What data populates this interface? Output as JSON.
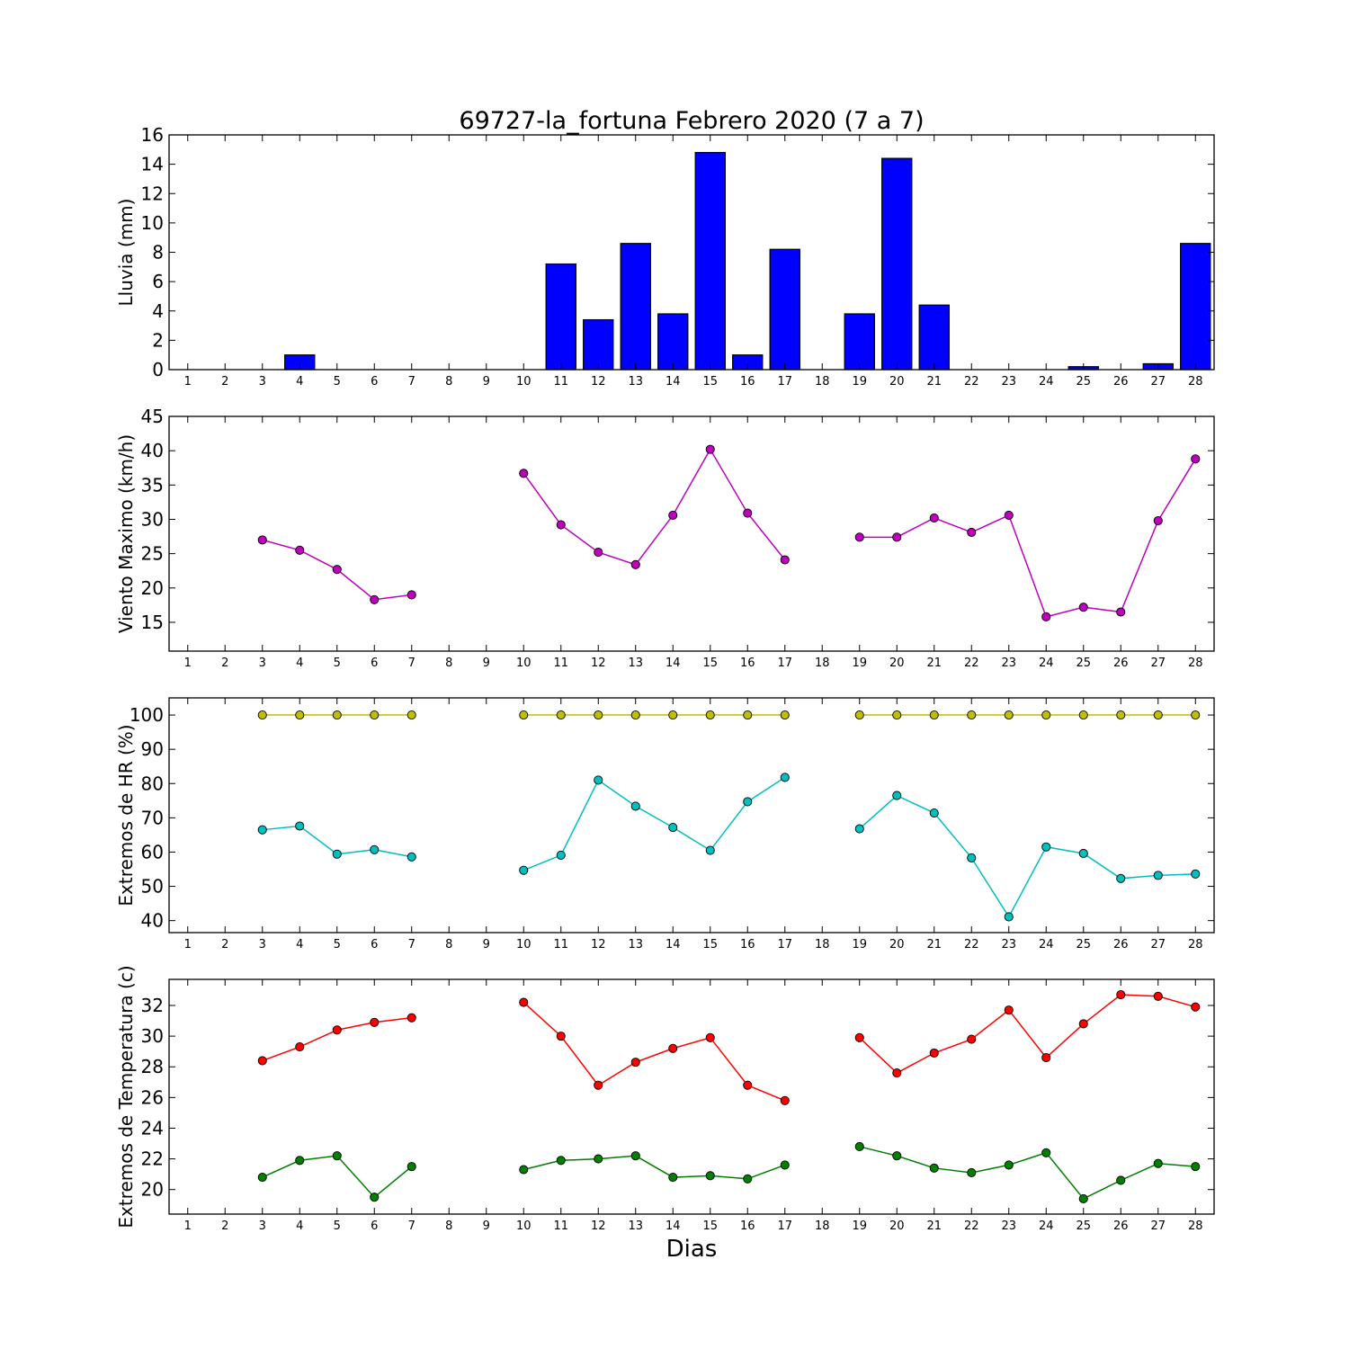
{
  "figure": {
    "title": "69727-la_fortuna Febrero 2020  (7 a 7)",
    "xlabel": "Dias"
  },
  "chart_data": [
    {
      "id": "rain",
      "type": "bar",
      "ylabel": "Lluvia (mm)",
      "ylim": [
        0,
        16
      ],
      "yticks": [
        0,
        2,
        4,
        6,
        8,
        10,
        12,
        14,
        16
      ],
      "xlim": [
        0.5,
        28.5
      ],
      "xticks": [
        1,
        2,
        3,
        4,
        5,
        6,
        7,
        8,
        9,
        10,
        11,
        12,
        13,
        14,
        15,
        16,
        17,
        18,
        19,
        20,
        21,
        22,
        23,
        24,
        25,
        26,
        27,
        28
      ],
      "grid": false,
      "series": [
        {
          "color": "#0000ff",
          "x": [
            1,
            2,
            3,
            4,
            5,
            6,
            7,
            8,
            9,
            10,
            11,
            12,
            13,
            14,
            15,
            16,
            17,
            18,
            19,
            20,
            21,
            22,
            23,
            24,
            25,
            26,
            27,
            28
          ],
          "values": [
            0,
            0,
            0,
            1.0,
            0,
            0,
            0,
            0,
            0,
            0,
            7.2,
            3.4,
            8.6,
            3.8,
            14.8,
            1.0,
            8.2,
            0,
            3.8,
            14.4,
            4.4,
            0,
            0,
            0,
            0.2,
            0,
            0.4,
            8.6
          ]
        }
      ]
    },
    {
      "id": "wind",
      "type": "line",
      "ylabel": "Viento Maximo (km/h)",
      "ylim": [
        10.8,
        45
      ],
      "yticks": [
        15,
        20,
        25,
        30,
        35,
        40,
        45
      ],
      "xlim": [
        0.5,
        28.5
      ],
      "xticks": [
        1,
        2,
        3,
        4,
        5,
        6,
        7,
        8,
        9,
        10,
        11,
        12,
        13,
        14,
        15,
        16,
        17,
        18,
        19,
        20,
        21,
        22,
        23,
        24,
        25,
        26,
        27,
        28
      ],
      "grid": false,
      "series": [
        {
          "color": "#bf00bf",
          "x": [
            3,
            4,
            5,
            6,
            7,
            10,
            11,
            12,
            13,
            14,
            15,
            16,
            17,
            19,
            20,
            21,
            22,
            23,
            24,
            25,
            26,
            27,
            28
          ],
          "y": [
            27.0,
            25.5,
            22.7,
            18.3,
            19.0,
            36.7,
            29.2,
            25.2,
            23.4,
            30.6,
            40.2,
            30.9,
            24.1,
            27.4,
            27.4,
            30.2,
            28.1,
            30.6,
            15.8,
            17.2,
            16.5,
            29.8,
            38.8
          ]
        }
      ]
    },
    {
      "id": "hr",
      "type": "line",
      "ylabel": "Extremos de HR (%)",
      "ylim": [
        36.5,
        105
      ],
      "yticks": [
        40,
        50,
        60,
        70,
        80,
        90,
        100
      ],
      "xlim": [
        0.5,
        28.5
      ],
      "xticks": [
        1,
        2,
        3,
        4,
        5,
        6,
        7,
        8,
        9,
        10,
        11,
        12,
        13,
        14,
        15,
        16,
        17,
        18,
        19,
        20,
        21,
        22,
        23,
        24,
        25,
        26,
        27,
        28
      ],
      "grid": false,
      "series": [
        {
          "color": "#bfbf00",
          "x": [
            3,
            4,
            5,
            6,
            7,
            10,
            11,
            12,
            13,
            14,
            15,
            16,
            17,
            19,
            20,
            21,
            22,
            23,
            24,
            25,
            26,
            27,
            28
          ],
          "y": [
            100,
            100,
            100,
            100,
            100,
            100,
            100,
            100,
            100,
            100,
            100,
            100,
            100,
            100,
            100,
            100,
            100,
            100,
            100,
            100,
            100,
            100,
            100
          ]
        },
        {
          "color": "#00bfbf",
          "x": [
            3,
            4,
            5,
            6,
            7,
            10,
            11,
            12,
            13,
            14,
            15,
            16,
            17,
            19,
            20,
            21,
            22,
            23,
            24,
            25,
            26,
            27,
            28
          ],
          "y": [
            66.5,
            67.6,
            59.4,
            60.7,
            58.6,
            54.7,
            59.1,
            81.0,
            73.4,
            67.2,
            60.5,
            74.7,
            81.8,
            66.8,
            76.5,
            71.4,
            58.3,
            41.1,
            61.5,
            59.6,
            52.3,
            53.2,
            53.6
          ]
        }
      ]
    },
    {
      "id": "temp",
      "type": "line",
      "ylabel": "Extremos de Temperatura (c)",
      "ylim": [
        18.4,
        33.7
      ],
      "yticks": [
        20,
        22,
        24,
        26,
        28,
        30,
        32
      ],
      "xlim": [
        0.5,
        28.5
      ],
      "xticks": [
        1,
        2,
        3,
        4,
        5,
        6,
        7,
        8,
        9,
        10,
        11,
        12,
        13,
        14,
        15,
        16,
        17,
        18,
        19,
        20,
        21,
        22,
        23,
        24,
        25,
        26,
        27,
        28
      ],
      "grid": false,
      "series": [
        {
          "color": "#ff0000",
          "x": [
            3,
            4,
            5,
            6,
            7,
            10,
            11,
            12,
            13,
            14,
            15,
            16,
            17,
            19,
            20,
            21,
            22,
            23,
            24,
            25,
            26,
            27,
            28
          ],
          "y": [
            28.4,
            29.3,
            30.4,
            30.9,
            31.2,
            32.2,
            30.0,
            26.8,
            28.3,
            29.2,
            29.9,
            26.8,
            25.8,
            29.9,
            27.6,
            28.9,
            29.8,
            31.7,
            28.6,
            30.8,
            32.7,
            32.6,
            31.9
          ]
        },
        {
          "color": "#007f00",
          "x": [
            3,
            4,
            5,
            6,
            7,
            10,
            11,
            12,
            13,
            14,
            15,
            16,
            17,
            19,
            20,
            21,
            22,
            23,
            24,
            25,
            26,
            27,
            28
          ],
          "y": [
            20.8,
            21.9,
            22.2,
            19.5,
            21.5,
            21.3,
            21.9,
            22.0,
            22.2,
            20.8,
            20.9,
            20.7,
            21.6,
            22.8,
            22.2,
            21.4,
            21.1,
            21.6,
            22.4,
            19.4,
            20.6,
            21.7,
            21.5
          ]
        }
      ]
    }
  ]
}
